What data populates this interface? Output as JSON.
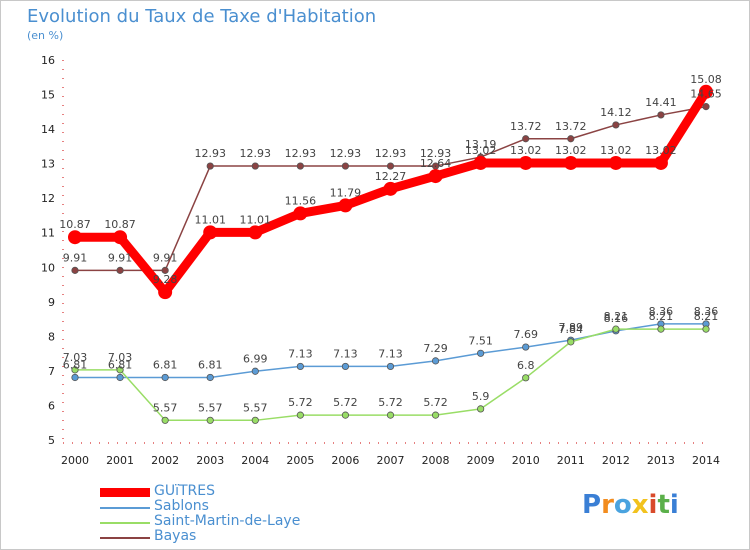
{
  "title": "Evolution du Taux de Taxe d'Habitation",
  "subtitle": "(en %)",
  "logo": "Proxiti",
  "chart_data": {
    "type": "line",
    "x": [
      "2000",
      "2001",
      "2002",
      "2003",
      "2004",
      "2005",
      "2006",
      "2007",
      "2008",
      "2009",
      "2010",
      "2011",
      "2012",
      "2013",
      "2014"
    ],
    "ylim": [
      5,
      16
    ],
    "yticks": [
      "5",
      "6",
      "7",
      "8",
      "9",
      "10",
      "11",
      "12",
      "13",
      "14",
      "15",
      "16"
    ],
    "grid": false,
    "legend_position": "bottom-left",
    "series": [
      {
        "name": "GUïTRES",
        "color": "#ff0000",
        "values": [
          10.87,
          10.87,
          9.28,
          11.01,
          11.01,
          11.56,
          11.79,
          12.27,
          12.64,
          13.02,
          13.02,
          13.02,
          13.02,
          13.02,
          15.08
        ],
        "labels": [
          "10.87",
          "10.87",
          "9.28",
          "11.01",
          "11.01",
          "11.56",
          "11.79",
          "12.27",
          "12.64",
          "13.02",
          "13.02",
          "13.02",
          "13.02",
          "13.02",
          "15.08"
        ]
      },
      {
        "name": "Sablons",
        "color": "#5b9bd5",
        "values": [
          6.81,
          6.81,
          6.81,
          6.81,
          6.99,
          7.13,
          7.13,
          7.13,
          7.29,
          7.51,
          7.69,
          7.89,
          8.16,
          8.36,
          8.36
        ],
        "labels": [
          "6.81",
          "6.81",
          "6.81",
          "6.81",
          "6.99",
          "7.13",
          "7.13",
          "7.13",
          "7.29",
          "7.51",
          "7.69",
          "7.89",
          "8.16",
          "8.36",
          "8.36"
        ]
      },
      {
        "name": "Saint-Martin-de-Laye",
        "color": "#99dd66",
        "values": [
          7.03,
          7.03,
          5.57,
          5.57,
          5.57,
          5.72,
          5.72,
          5.72,
          5.72,
          5.9,
          6.8,
          7.84,
          8.21,
          8.21,
          8.21
        ],
        "labels": [
          "7.03",
          "7.03",
          "5.57",
          "5.57",
          "5.57",
          "5.72",
          "5.72",
          "5.72",
          "5.72",
          "5.9",
          "6.8",
          "7.84",
          "8.21",
          "8.21",
          "8.21"
        ]
      },
      {
        "name": "Bayas",
        "color": "#8b4343",
        "values": [
          9.91,
          9.91,
          9.91,
          12.93,
          12.93,
          12.93,
          12.93,
          12.93,
          12.93,
          13.19,
          13.72,
          13.72,
          14.12,
          14.41,
          14.65
        ],
        "labels": [
          "9.91",
          "9.91",
          "9.91",
          "12.93",
          "12.93",
          "12.93",
          "12.93",
          "12.93",
          "12.93",
          "13.19",
          "13.72",
          "13.72",
          "14.12",
          "14.41",
          "14.65"
        ]
      }
    ]
  }
}
